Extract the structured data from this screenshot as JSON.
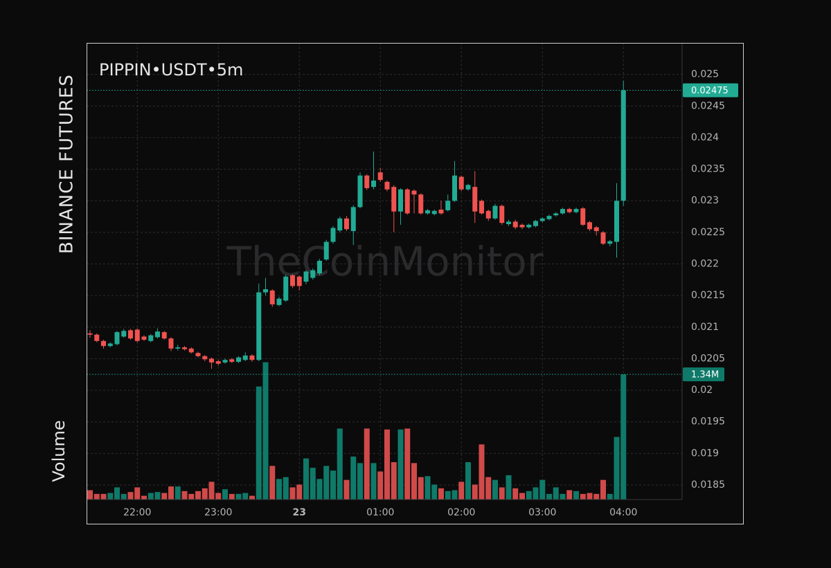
{
  "chart_data": {
    "type": "candlestick",
    "title": "PIPPIN•USDT•5m",
    "exchange_label": "BINANCE FUTURES",
    "volume_label": "Volume",
    "watermark": "TheCoinMonitor",
    "up_color": "#22ab94",
    "down_color": "#f05350",
    "volume_up_color": "#0f7a69",
    "volume_down_color": "#d04a4a",
    "grid": true,
    "categories": [
      "21:25",
      "21:30",
      "21:35",
      "21:40",
      "21:45",
      "21:50",
      "21:55",
      "22:00",
      "22:05",
      "22:10",
      "22:15",
      "22:20",
      "22:25",
      "22:30",
      "22:35",
      "22:40",
      "22:45",
      "22:50",
      "22:55",
      "23:00",
      "23:05",
      "23:10",
      "23:15",
      "23:20",
      "23:25",
      "23:30",
      "23:35",
      "23:40",
      "23:45",
      "23:50",
      "23:55",
      "00:00",
      "00:05",
      "00:10",
      "00:15",
      "00:20",
      "00:25",
      "00:30",
      "00:35",
      "00:40",
      "00:45",
      "00:50",
      "00:55",
      "01:00",
      "01:05",
      "01:10",
      "01:15",
      "01:20",
      "01:25",
      "01:30",
      "01:35",
      "01:40",
      "01:45",
      "01:50",
      "01:55",
      "02:00",
      "02:05",
      "02:10",
      "02:15",
      "02:20",
      "02:25",
      "02:30",
      "02:35",
      "02:40",
      "02:45",
      "02:50",
      "02:55",
      "03:00",
      "03:05",
      "03:10",
      "03:15",
      "03:20",
      "03:25",
      "03:30",
      "03:35",
      "03:40",
      "03:45",
      "03:50",
      "03:55",
      "04:00"
    ],
    "open": [
      0.0209,
      0.02088,
      0.02078,
      0.0207,
      0.02073,
      0.02085,
      0.02095,
      0.02096,
      0.02085,
      0.02078,
      0.02084,
      0.02092,
      0.02082,
      0.02066,
      0.02068,
      0.02066,
      0.02059,
      0.02054,
      0.0205,
      0.02046,
      0.02044,
      0.02049,
      0.02045,
      0.02048,
      0.02055,
      0.02048,
      0.02155,
      0.02158,
      0.02135,
      0.02142,
      0.02182,
      0.0218,
      0.02172,
      0.02178,
      0.02185,
      0.02207,
      0.02235,
      0.02253,
      0.02272,
      0.02252,
      0.0229,
      0.0234,
      0.02322,
      0.02345,
      0.0233,
      0.02322,
      0.02283,
      0.02318,
      0.02316,
      0.0231,
      0.0228,
      0.02279,
      0.02286,
      0.02285,
      0.023,
      0.02338,
      0.02318,
      0.02322,
      0.023,
      0.02284,
      0.02272,
      0.02292,
      0.02263,
      0.02267,
      0.02262,
      0.02258,
      0.0226,
      0.02268,
      0.02271,
      0.02277,
      0.0228,
      0.02287,
      0.02282,
      0.02288,
      0.02266,
      0.02258,
      0.0225,
      0.02232,
      0.02235,
      0.023
    ],
    "high": [
      0.02095,
      0.0209,
      0.0208,
      0.02076,
      0.02094,
      0.02097,
      0.02097,
      0.02098,
      0.02087,
      0.02089,
      0.02098,
      0.02094,
      0.02084,
      0.02072,
      0.0207,
      0.02068,
      0.02061,
      0.02056,
      0.02052,
      0.02048,
      0.0205,
      0.02051,
      0.02054,
      0.0206,
      0.02057,
      0.02169,
      0.02178,
      0.0216,
      0.02148,
      0.02183,
      0.02184,
      0.02182,
      0.0219,
      0.02193,
      0.02208,
      0.02238,
      0.0226,
      0.02275,
      0.02276,
      0.02293,
      0.02345,
      0.02342,
      0.02378,
      0.02352,
      0.02332,
      0.02325,
      0.0232,
      0.0232,
      0.02318,
      0.02312,
      0.02287,
      0.02286,
      0.023,
      0.0231,
      0.02363,
      0.0234,
      0.02327,
      0.02347,
      0.02302,
      0.02286,
      0.02295,
      0.02294,
      0.0227,
      0.0227,
      0.02264,
      0.02264,
      0.0227,
      0.02274,
      0.02278,
      0.02282,
      0.02289,
      0.02289,
      0.02289,
      0.0229,
      0.02268,
      0.0226,
      0.02252,
      0.02238,
      0.02328,
      0.0249
    ],
    "low": [
      0.02083,
      0.02076,
      0.02066,
      0.02068,
      0.02071,
      0.02083,
      0.0208,
      0.02076,
      0.02078,
      0.02076,
      0.02082,
      0.0208,
      0.02062,
      0.02063,
      0.02063,
      0.02058,
      0.02052,
      0.02046,
      0.02034,
      0.02039,
      0.02042,
      0.02043,
      0.02043,
      0.02046,
      0.02045,
      0.02046,
      0.0215,
      0.02132,
      0.02133,
      0.0214,
      0.02162,
      0.02158,
      0.02168,
      0.02175,
      0.02182,
      0.02205,
      0.02232,
      0.0225,
      0.02252,
      0.0223,
      0.02288,
      0.02317,
      0.02318,
      0.0233,
      0.02315,
      0.0225,
      0.02262,
      0.02278,
      0.0228,
      0.02278,
      0.02278,
      0.02277,
      0.02278,
      0.02283,
      0.02298,
      0.02315,
      0.02316,
      0.02265,
      0.02278,
      0.02268,
      0.0227,
      0.02262,
      0.0226,
      0.02255,
      0.02255,
      0.02256,
      0.02258,
      0.02266,
      0.02269,
      0.02275,
      0.02278,
      0.0228,
      0.0228,
      0.0226,
      0.02252,
      0.02245,
      0.0223,
      0.02228,
      0.0221,
      0.02292
    ],
    "close": [
      0.02088,
      0.02078,
      0.0207,
      0.02074,
      0.02092,
      0.02094,
      0.02082,
      0.02078,
      0.0208,
      0.02087,
      0.02093,
      0.02082,
      0.02066,
      0.02068,
      0.02065,
      0.0206,
      0.02054,
      0.02049,
      0.02044,
      0.02042,
      0.02048,
      0.02045,
      0.02052,
      0.02055,
      0.02048,
      0.02155,
      0.0216,
      0.02136,
      0.02145,
      0.0218,
      0.02165,
      0.02165,
      0.02188,
      0.0219,
      0.02205,
      0.02235,
      0.02257,
      0.02272,
      0.02255,
      0.0229,
      0.0234,
      0.0232,
      0.02332,
      0.02333,
      0.02318,
      0.02283,
      0.02318,
      0.0228,
      0.0231,
      0.0228,
      0.02285,
      0.02284,
      0.0228,
      0.023,
      0.0234,
      0.02318,
      0.02325,
      0.02283,
      0.0228,
      0.02272,
      0.02292,
      0.02265,
      0.02267,
      0.02258,
      0.02258,
      0.02262,
      0.02268,
      0.02272,
      0.02276,
      0.0228,
      0.02287,
      0.02282,
      0.02287,
      0.02262,
      0.02255,
      0.02252,
      0.02232,
      0.02236,
      0.023,
      0.02475
    ],
    "volume": [
      100000,
      60000,
      60000,
      70000,
      130000,
      60000,
      80000,
      130000,
      40000,
      70000,
      80000,
      70000,
      140000,
      140000,
      90000,
      60000,
      90000,
      120000,
      190000,
      70000,
      110000,
      60000,
      60000,
      70000,
      40000,
      1210000,
      1470000,
      360000,
      220000,
      240000,
      130000,
      160000,
      440000,
      340000,
      220000,
      360000,
      310000,
      760000,
      210000,
      460000,
      390000,
      760000,
      390000,
      300000,
      750000,
      400000,
      750000,
      760000,
      390000,
      240000,
      250000,
      160000,
      120000,
      90000,
      100000,
      190000,
      400000,
      160000,
      590000,
      240000,
      210000,
      130000,
      260000,
      120000,
      70000,
      90000,
      130000,
      210000,
      60000,
      130000,
      60000,
      100000,
      90000,
      60000,
      70000,
      60000,
      210000,
      60000,
      670000,
      1340000
    ],
    "volume_last_label": "1.34M",
    "ylim": [
      0.01827,
      0.0255
    ],
    "yticks": [
      0.025,
      0.0245,
      0.024,
      0.0235,
      0.023,
      0.0225,
      0.022,
      0.0215,
      0.021,
      0.0205,
      0.02,
      0.0195,
      0.019,
      0.0185
    ],
    "y2lim": [
      0,
      4890000
    ],
    "xticks": [
      "22:00",
      "23:00",
      {
        "value": "00:00",
        "label": "23"
      },
      "01:00",
      "02:00",
      "03:00",
      "04:00"
    ]
  }
}
